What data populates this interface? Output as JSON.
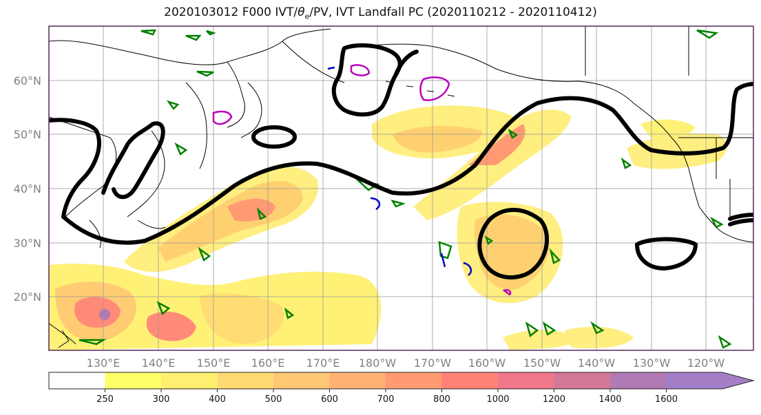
{
  "title": {
    "prefix": "2020103012 F000 IVT/",
    "theta": "θ",
    "theta_sub": "e",
    "suffix": "/PV, IVT Landfall PC (2020110212 - 2020110412)"
  },
  "map": {
    "lat_labels": [
      "60°N",
      "50°N",
      "40°N",
      "30°N",
      "20°N"
    ],
    "lon_labels": [
      "130°E",
      "140°E",
      "150°E",
      "160°E",
      "170°E",
      "180°W",
      "170°W",
      "160°W",
      "150°W",
      "140°W",
      "130°W",
      "120°W"
    ],
    "colors": {
      "theta_e_contour": "#000000",
      "pv_positive": "#008000",
      "pv_negative": "#0000cc",
      "pv_high": "#bb00bb",
      "land_outline": "#000000",
      "grid": "#999999"
    }
  },
  "colorbar": {
    "tick_labels": [
      "250",
      "300",
      "400",
      "500",
      "600",
      "700",
      "800",
      "1000",
      "1200",
      "1400",
      "1600"
    ],
    "colors": [
      "#ffff66",
      "#ffee70",
      "#ffda73",
      "#ffc673",
      "#ffb273",
      "#ff9a73",
      "#ff8278",
      "#f0788a",
      "#d27898",
      "#b07ab4",
      "#a57ec8"
    ],
    "extend": "max"
  }
}
